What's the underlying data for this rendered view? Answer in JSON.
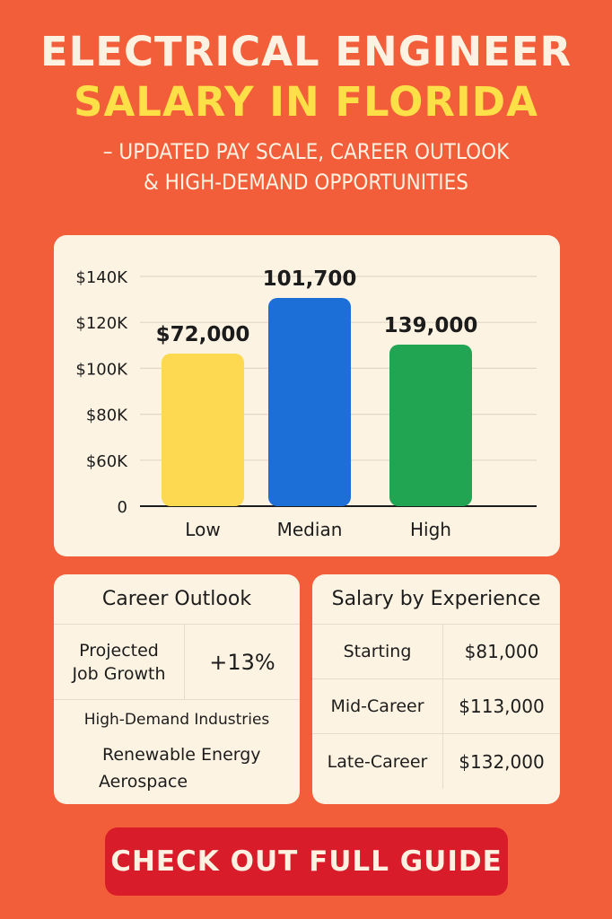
{
  "header": {
    "title_line1": "ELECTRICAL ENGINEER",
    "title_line2": "SALARY IN FLORIDA",
    "subtitle_line1": "– UPDATED PAY SCALE, CAREER OUTLOOK",
    "subtitle_line2": "& HIGH-DEMAND OPPORTUNITIES"
  },
  "chart_data": {
    "type": "bar",
    "categories": [
      "Low",
      "Median",
      "High"
    ],
    "values": [
      72000,
      101700,
      139000
    ],
    "value_labels": [
      "$72,000",
      "101,700",
      "139,000"
    ],
    "bar_colors": [
      "#fcd951",
      "#1b6fd6",
      "#21a553"
    ],
    "y_tick_labels": [
      "0",
      "$60K",
      "$80K",
      "$100K",
      "$120K",
      "$140K"
    ],
    "grid": true
  },
  "career_outlook": {
    "title": "Career Outlook",
    "growth_label_line1": "Projected",
    "growth_label_line2": "Job Growth",
    "growth_value": "+13%",
    "industries_title": "High-Demand Industries",
    "industries": [
      "Renewable Energy",
      "Aerospace"
    ]
  },
  "salary_by_experience": {
    "title": "Salary by Experience",
    "rows": [
      {
        "label": "Starting",
        "value": "$81,000"
      },
      {
        "label": "Mid-Career",
        "value": "$113,000"
      },
      {
        "label": "Late-Career",
        "value": "$132,000"
      }
    ]
  },
  "cta": {
    "label": "CHECK OUT FULL GUIDE"
  },
  "colors": {
    "background": "#f25d3a",
    "card": "#fdf3e2",
    "title_accent": "#fde047",
    "cta": "#d91c2a"
  }
}
